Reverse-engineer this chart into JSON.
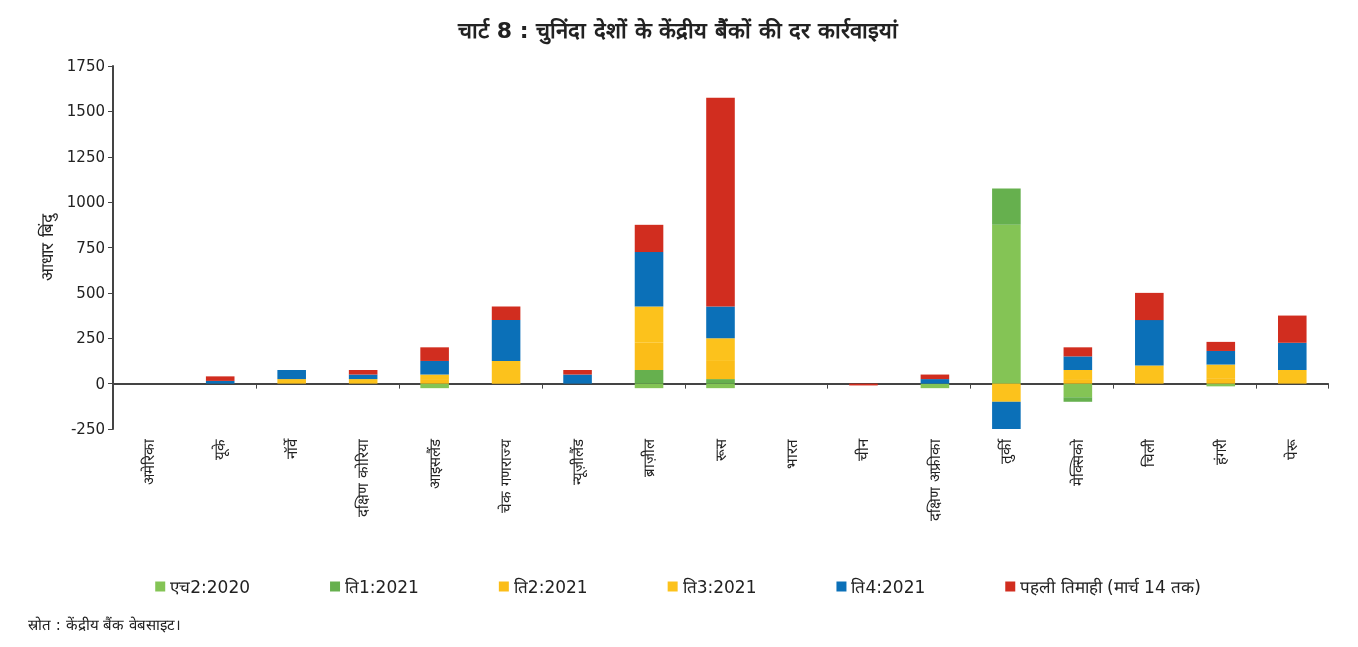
{
  "chart_data": {
    "type": "bar",
    "title": "चार्ट 8 : चुनिंदा देशों के केंद्रीय बैंकों की दर कार्रवाइयां",
    "ylabel": "आधार बिंदु",
    "categories": [
      "अमेरिका",
      "यूके",
      "नॉर्वे",
      "दक्षिण कोरिया",
      "आइसलैंड",
      "चेक गणराज्य",
      "न्यूज़ीलैंड",
      "ब्राज़ील",
      "रूस",
      "भारत",
      "चीन",
      "दक्षिण अफ्रीका",
      "तुर्की",
      "मेक्सिको",
      "चिली",
      "हंगरी",
      "पेरू"
    ],
    "stacked": true,
    "series": [
      {
        "name": "एच2:2020",
        "color": "#84c455",
        "values": [
          0,
          0,
          0,
          0,
          -25,
          0,
          0,
          -25,
          -25,
          0,
          0,
          -25,
          875,
          -75,
          0,
          -15,
          0
        ]
      },
      {
        "name": "ति1:2021",
        "color": "#66b04e",
        "values": [
          0,
          0,
          0,
          0,
          0,
          0,
          0,
          75,
          25,
          0,
          0,
          0,
          200,
          -25,
          0,
          0,
          0
        ]
      },
      {
        "name": "ति2:2021",
        "color": "#fbbd18",
        "values": [
          0,
          0,
          0,
          0,
          25,
          0,
          0,
          150,
          100,
          0,
          0,
          0,
          0,
          25,
          0,
          30,
          0
        ]
      },
      {
        "name": "ति3:2021",
        "color": "#fcc21c",
        "values": [
          0,
          0,
          25,
          25,
          25,
          125,
          0,
          200,
          125,
          0,
          0,
          0,
          -100,
          50,
          100,
          75,
          75
        ]
      },
      {
        "name": "ति4:2021",
        "color": "#0b70b8",
        "values": [
          0,
          15,
          50,
          25,
          75,
          225,
          50,
          300,
          175,
          0,
          0,
          25,
          -150,
          75,
          250,
          75,
          150
        ]
      },
      {
        "name": "पहली तिमाही (मार्च 14 तक)",
        "color": "#d12d1f",
        "values": [
          0,
          25,
          0,
          25,
          75,
          75,
          25,
          150,
          1150,
          0,
          -10,
          25,
          0,
          50,
          150,
          50,
          150
        ]
      }
    ],
    "ylim": [
      -250,
      1750
    ],
    "yticks": [
      -250,
      0,
      250,
      500,
      750,
      1000,
      1250,
      1500,
      1750
    ],
    "legend": "bottom",
    "annotations": [
      "स्रोत : केंद्रीय बैंक वेबसाइट।"
    ]
  }
}
